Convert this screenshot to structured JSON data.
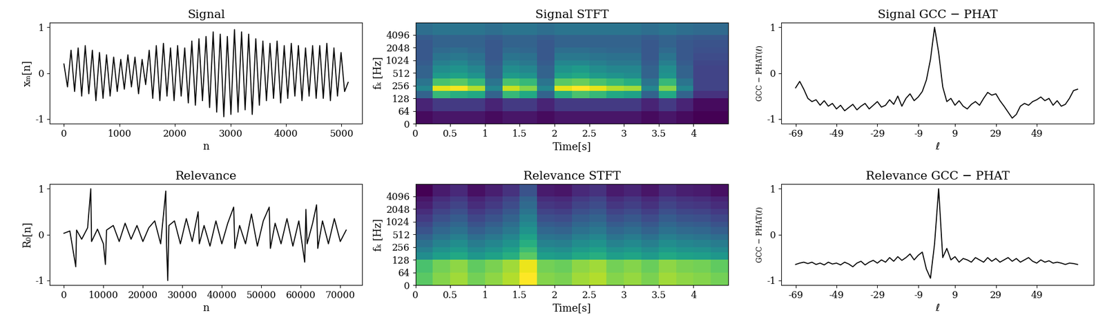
{
  "chart_data": [
    {
      "type": "line",
      "title": "Signal",
      "xlabel": "n",
      "ylabel": "xₘ[n]",
      "color": "#000000",
      "xlim": [
        -256,
        5376
      ],
      "ylim": [
        -1.1,
        1.1
      ],
      "xticks": [
        0,
        1000,
        2000,
        3000,
        4000,
        5000
      ],
      "yticks": [
        -1,
        0,
        1
      ],
      "x": [
        0,
        64,
        128,
        192,
        256,
        320,
        384,
        448,
        512,
        576,
        640,
        704,
        768,
        832,
        896,
        960,
        1024,
        1088,
        1152,
        1216,
        1280,
        1344,
        1408,
        1472,
        1536,
        1600,
        1664,
        1728,
        1792,
        1856,
        1920,
        1984,
        2048,
        2112,
        2176,
        2240,
        2304,
        2368,
        2432,
        2496,
        2560,
        2624,
        2688,
        2752,
        2816,
        2880,
        2944,
        3008,
        3072,
        3136,
        3200,
        3264,
        3328,
        3392,
        3456,
        3520,
        3584,
        3648,
        3712,
        3776,
        3840,
        3904,
        3968,
        4032,
        4096,
        4160,
        4224,
        4288,
        4352,
        4416,
        4480,
        4544,
        4608,
        4672,
        4736,
        4800,
        4864,
        4928,
        4992,
        5056,
        5120
      ],
      "values": [
        0.2,
        -0.3,
        0.5,
        -0.4,
        0.55,
        -0.5,
        0.6,
        -0.45,
        0.5,
        -0.6,
        0.45,
        -0.55,
        0.4,
        -0.5,
        0.35,
        -0.4,
        0.3,
        -0.35,
        0.4,
        -0.3,
        0.35,
        -0.45,
        0.3,
        -0.25,
        0.5,
        -0.55,
        0.6,
        -0.6,
        0.65,
        -0.5,
        0.55,
        -0.6,
        0.6,
        -0.5,
        0.55,
        -0.65,
        0.7,
        -0.7,
        0.75,
        -0.6,
        0.8,
        -0.75,
        0.9,
        -0.85,
        0.85,
        -0.95,
        0.8,
        -0.9,
        0.95,
        -0.85,
        0.9,
        -0.8,
        0.85,
        -0.9,
        0.75,
        -0.7,
        0.7,
        -0.6,
        0.65,
        -0.55,
        0.7,
        -0.65,
        0.6,
        -0.55,
        0.65,
        -0.5,
        0.6,
        -0.6,
        0.55,
        -0.5,
        0.6,
        -0.55,
        0.6,
        -0.55,
        0.65,
        -0.6,
        0.55,
        -0.5,
        0.45,
        -0.4,
        -0.2
      ]
    },
    {
      "type": "heatmap",
      "title": "Signal STFT",
      "xlabel": "Time[s]",
      "ylabel": "fₖ [Hz]",
      "log": "y",
      "color": "viridis",
      "xlim": [
        0,
        4.5
      ],
      "ylim": [
        0,
        8000
      ],
      "xticks": [
        0,
        0.5,
        1,
        1.5,
        2,
        2.5,
        3,
        3.5,
        4
      ],
      "yticks": [
        0,
        64,
        128,
        256,
        512,
        1024,
        2048,
        4096
      ],
      "x_edges": [
        0,
        0.25,
        0.5,
        0.75,
        1,
        1.25,
        1.5,
        1.75,
        2,
        2.25,
        2.5,
        2.75,
        3,
        3.25,
        3.5,
        3.75,
        4,
        4.25,
        4.5
      ],
      "y_edges": [
        0,
        64,
        128,
        192,
        256,
        384,
        512,
        768,
        1024,
        1536,
        2048,
        3072,
        4096,
        8000
      ],
      "cells": [
        [
          0.3,
          0.32,
          0.32,
          0.32,
          0.3,
          0.32,
          0.32,
          0.3,
          0.32,
          0.32,
          0.32,
          0.32,
          0.32,
          0.3,
          0.32,
          0.3,
          0.28,
          0.28
        ],
        [
          0.35,
          0.4,
          0.4,
          0.4,
          0.35,
          0.4,
          0.4,
          0.35,
          0.4,
          0.4,
          0.4,
          0.4,
          0.4,
          0.35,
          0.4,
          0.35,
          0.3,
          0.3
        ],
        [
          0.5,
          0.75,
          0.72,
          0.7,
          0.5,
          0.75,
          0.7,
          0.5,
          0.72,
          0.78,
          0.75,
          0.7,
          0.68,
          0.5,
          0.7,
          0.5,
          0.38,
          0.38
        ],
        [
          0.6,
          0.95,
          0.97,
          0.9,
          0.6,
          0.92,
          0.85,
          0.6,
          0.95,
          0.98,
          0.95,
          0.9,
          0.88,
          0.6,
          0.85,
          0.6,
          0.42,
          0.42
        ],
        [
          0.55,
          0.78,
          0.8,
          0.75,
          0.55,
          0.78,
          0.75,
          0.55,
          0.8,
          0.82,
          0.78,
          0.75,
          0.72,
          0.55,
          0.75,
          0.55,
          0.42,
          0.42
        ],
        [
          0.5,
          0.66,
          0.68,
          0.64,
          0.5,
          0.66,
          0.64,
          0.5,
          0.68,
          0.7,
          0.66,
          0.64,
          0.62,
          0.5,
          0.64,
          0.5,
          0.42,
          0.42
        ],
        [
          0.5,
          0.62,
          0.64,
          0.6,
          0.5,
          0.62,
          0.6,
          0.5,
          0.64,
          0.66,
          0.62,
          0.6,
          0.6,
          0.5,
          0.62,
          0.5,
          0.42,
          0.42
        ],
        [
          0.48,
          0.58,
          0.6,
          0.56,
          0.48,
          0.58,
          0.56,
          0.48,
          0.6,
          0.6,
          0.58,
          0.56,
          0.56,
          0.48,
          0.58,
          0.48,
          0.43,
          0.43
        ],
        [
          0.47,
          0.55,
          0.56,
          0.54,
          0.47,
          0.55,
          0.54,
          0.47,
          0.56,
          0.56,
          0.55,
          0.54,
          0.54,
          0.47,
          0.55,
          0.47,
          0.44,
          0.44
        ],
        [
          0.47,
          0.52,
          0.53,
          0.51,
          0.47,
          0.52,
          0.51,
          0.47,
          0.53,
          0.53,
          0.52,
          0.51,
          0.51,
          0.47,
          0.52,
          0.47,
          0.45,
          0.45
        ],
        [
          0.47,
          0.5,
          0.5,
          0.5,
          0.47,
          0.5,
          0.5,
          0.47,
          0.5,
          0.5,
          0.5,
          0.5,
          0.5,
          0.47,
          0.5,
          0.47,
          0.46,
          0.46
        ],
        [
          0.48,
          0.5,
          0.5,
          0.5,
          0.48,
          0.5,
          0.5,
          0.48,
          0.5,
          0.5,
          0.5,
          0.5,
          0.5,
          0.48,
          0.5,
          0.48,
          0.47,
          0.47
        ],
        [
          0.53,
          0.55,
          0.55,
          0.55,
          0.53,
          0.55,
          0.55,
          0.53,
          0.55,
          0.55,
          0.55,
          0.55,
          0.55,
          0.53,
          0.55,
          0.53,
          0.52,
          0.52
        ]
      ]
    },
    {
      "type": "line",
      "title": "Signal GCC − PHAT",
      "xlabel": "ℓ",
      "ylabel": "GCC − PHAT(ℓ)",
      "color": "#000000",
      "xlim": [
        -76,
        77
      ],
      "ylim": [
        -1.1,
        1.1
      ],
      "xticks": [
        -69,
        -49,
        -29,
        -9,
        9,
        29,
        49
      ],
      "yticks": [
        -1,
        0,
        1
      ],
      "x": [
        -69,
        -67,
        -65,
        -63,
        -61,
        -59,
        -57,
        -55,
        -53,
        -51,
        -49,
        -47,
        -45,
        -43,
        -41,
        -39,
        -37,
        -35,
        -33,
        -31,
        -29,
        -27,
        -25,
        -23,
        -21,
        -19,
        -17,
        -15,
        -13,
        -11,
        -9,
        -7,
        -5,
        -3,
        -1,
        1,
        3,
        5,
        7,
        9,
        11,
        13,
        15,
        17,
        19,
        21,
        23,
        25,
        27,
        29,
        31,
        33,
        35,
        37,
        39,
        41,
        43,
        45,
        47,
        49,
        51,
        53,
        55,
        57,
        59,
        61,
        63,
        65,
        67,
        69
      ],
      "values": [
        -0.32,
        -0.18,
        -0.35,
        -0.55,
        -0.62,
        -0.58,
        -0.7,
        -0.6,
        -0.72,
        -0.66,
        -0.78,
        -0.7,
        -0.82,
        -0.75,
        -0.68,
        -0.8,
        -0.72,
        -0.66,
        -0.78,
        -0.7,
        -0.62,
        -0.74,
        -0.7,
        -0.58,
        -0.68,
        -0.5,
        -0.72,
        -0.55,
        -0.45,
        -0.6,
        -0.52,
        -0.4,
        -0.15,
        0.3,
        1.0,
        0.45,
        -0.3,
        -0.62,
        -0.55,
        -0.7,
        -0.6,
        -0.72,
        -0.78,
        -0.68,
        -0.62,
        -0.7,
        -0.55,
        -0.42,
        -0.48,
        -0.45,
        -0.6,
        -0.72,
        -0.85,
        -0.98,
        -0.9,
        -0.72,
        -0.66,
        -0.7,
        -0.62,
        -0.58,
        -0.52,
        -0.6,
        -0.55,
        -0.7,
        -0.6,
        -0.72,
        -0.68,
        -0.55,
        -0.38,
        -0.35
      ]
    },
    {
      "type": "line",
      "title": "Relevance",
      "xlabel": "n",
      "ylabel": "R₀[n]",
      "color": "#000000",
      "xlim": [
        -3600,
        75600
      ],
      "ylim": [
        -1.1,
        1.1
      ],
      "xticks": [
        0,
        10000,
        20000,
        30000,
        40000,
        50000,
        60000,
        70000
      ],
      "yticks": [
        -1,
        0,
        1
      ],
      "x": [
        0,
        1500,
        3000,
        3200,
        4500,
        6000,
        6800,
        7000,
        8500,
        10000,
        10500,
        10800,
        12500,
        14000,
        15500,
        17000,
        18500,
        20000,
        21500,
        23000,
        24500,
        25800,
        26000,
        26300,
        26600,
        28000,
        29500,
        31000,
        32500,
        34000,
        34300,
        35500,
        37000,
        38500,
        40000,
        41500,
        43000,
        43300,
        44500,
        46000,
        47500,
        49000,
        50500,
        52000,
        52300,
        53500,
        55000,
        56500,
        58000,
        59500,
        61000,
        61300,
        61600,
        63000,
        64000,
        64300,
        65500,
        67000,
        68500,
        70000,
        71500
      ],
      "values": [
        0.03,
        0.08,
        -0.7,
        0.1,
        -0.1,
        0.15,
        1.0,
        -0.15,
        0.12,
        -0.2,
        -0.65,
        0.1,
        0.2,
        -0.15,
        0.25,
        -0.1,
        0.2,
        -0.15,
        0.15,
        0.3,
        -0.2,
        0.95,
        -0.25,
        -1.0,
        0.2,
        0.3,
        -0.2,
        0.35,
        -0.15,
        0.5,
        -0.2,
        0.2,
        -0.25,
        0.3,
        -0.2,
        0.25,
        0.6,
        -0.3,
        0.2,
        -0.2,
        0.45,
        -0.25,
        0.3,
        0.6,
        -0.3,
        0.25,
        -0.2,
        0.35,
        -0.25,
        0.3,
        -0.6,
        0.55,
        -0.2,
        0.25,
        0.65,
        -0.3,
        0.3,
        -0.2,
        0.35,
        -0.15,
        0.1
      ]
    },
    {
      "type": "heatmap",
      "title": "Relevance STFT",
      "xlabel": "Time[s]",
      "ylabel": "fₖ [Hz]",
      "log": "y",
      "color": "viridis",
      "xlim": [
        0,
        4.5
      ],
      "ylim": [
        0,
        8000
      ],
      "xticks": [
        0,
        0.5,
        1,
        1.5,
        2,
        2.5,
        3,
        3.5,
        4
      ],
      "yticks": [
        0,
        64,
        128,
        256,
        512,
        1024,
        2048,
        4096
      ],
      "x_edges": [
        0,
        0.25,
        0.5,
        0.75,
        1,
        1.25,
        1.5,
        1.75,
        2,
        2.25,
        2.5,
        2.75,
        3,
        3.25,
        3.5,
        3.75,
        4,
        4.25,
        4.5
      ],
      "y_edges": [
        0,
        64,
        128,
        192,
        256,
        384,
        512,
        768,
        1024,
        1536,
        2048,
        3072,
        4096,
        8000
      ],
      "cells": [
        [
          0.8,
          0.85,
          0.88,
          0.83,
          0.86,
          0.9,
          0.98,
          0.85,
          0.84,
          0.88,
          0.9,
          0.85,
          0.87,
          0.84,
          0.88,
          0.86,
          0.85,
          0.83
        ],
        [
          0.78,
          0.83,
          0.86,
          0.81,
          0.84,
          0.88,
          0.96,
          0.83,
          0.82,
          0.86,
          0.88,
          0.83,
          0.85,
          0.82,
          0.86,
          0.84,
          0.83,
          0.81
        ],
        [
          0.62,
          0.67,
          0.7,
          0.65,
          0.68,
          0.72,
          0.8,
          0.67,
          0.66,
          0.7,
          0.72,
          0.67,
          0.69,
          0.66,
          0.7,
          0.68,
          0.67,
          0.65
        ],
        [
          0.58,
          0.63,
          0.66,
          0.61,
          0.64,
          0.68,
          0.76,
          0.63,
          0.62,
          0.66,
          0.68,
          0.63,
          0.65,
          0.62,
          0.66,
          0.64,
          0.63,
          0.61
        ],
        [
          0.54,
          0.59,
          0.62,
          0.57,
          0.6,
          0.64,
          0.72,
          0.59,
          0.58,
          0.62,
          0.64,
          0.59,
          0.61,
          0.58,
          0.62,
          0.6,
          0.59,
          0.57
        ],
        [
          0.5,
          0.55,
          0.58,
          0.53,
          0.56,
          0.6,
          0.68,
          0.55,
          0.54,
          0.58,
          0.6,
          0.55,
          0.57,
          0.54,
          0.58,
          0.56,
          0.55,
          0.53
        ],
        [
          0.46,
          0.51,
          0.54,
          0.49,
          0.52,
          0.56,
          0.64,
          0.51,
          0.5,
          0.54,
          0.56,
          0.51,
          0.53,
          0.5,
          0.54,
          0.52,
          0.51,
          0.49
        ],
        [
          0.43,
          0.48,
          0.51,
          0.46,
          0.49,
          0.53,
          0.61,
          0.48,
          0.47,
          0.51,
          0.53,
          0.48,
          0.5,
          0.47,
          0.51,
          0.49,
          0.48,
          0.46
        ],
        [
          0.4,
          0.45,
          0.48,
          0.43,
          0.46,
          0.5,
          0.58,
          0.45,
          0.44,
          0.48,
          0.5,
          0.45,
          0.47,
          0.44,
          0.48,
          0.46,
          0.45,
          0.43
        ],
        [
          0.37,
          0.42,
          0.45,
          0.4,
          0.43,
          0.47,
          0.55,
          0.42,
          0.41,
          0.45,
          0.47,
          0.42,
          0.44,
          0.41,
          0.45,
          0.43,
          0.42,
          0.4
        ],
        [
          0.34,
          0.39,
          0.42,
          0.37,
          0.4,
          0.44,
          0.52,
          0.39,
          0.38,
          0.42,
          0.44,
          0.39,
          0.41,
          0.38,
          0.42,
          0.4,
          0.39,
          0.37
        ],
        [
          0.32,
          0.37,
          0.4,
          0.35,
          0.38,
          0.42,
          0.5,
          0.37,
          0.36,
          0.4,
          0.42,
          0.37,
          0.39,
          0.36,
          0.4,
          0.38,
          0.37,
          0.35
        ],
        [
          0.28,
          0.33,
          0.36,
          0.31,
          0.34,
          0.38,
          0.46,
          0.33,
          0.32,
          0.36,
          0.38,
          0.33,
          0.35,
          0.32,
          0.36,
          0.34,
          0.33,
          0.31
        ]
      ]
    },
    {
      "type": "line",
      "title": "Relevance GCC − PHAT",
      "xlabel": "ℓ",
      "ylabel": "GCC − PHAT(ℓ)",
      "color": "#000000",
      "xlim": [
        -76,
        77
      ],
      "ylim": [
        -1.1,
        1.1
      ],
      "xticks": [
        -69,
        -49,
        -29,
        -9,
        9,
        29,
        49
      ],
      "yticks": [
        -1,
        0,
        1
      ],
      "x": [
        -69,
        -67,
        -65,
        -63,
        -61,
        -59,
        -57,
        -55,
        -53,
        -51,
        -49,
        -47,
        -45,
        -43,
        -41,
        -39,
        -37,
        -35,
        -33,
        -31,
        -29,
        -27,
        -25,
        -23,
        -21,
        -19,
        -17,
        -15,
        -13,
        -11,
        -9,
        -7,
        -5,
        -3,
        -1,
        1,
        3,
        5,
        7,
        9,
        11,
        13,
        15,
        17,
        19,
        21,
        23,
        25,
        27,
        29,
        31,
        33,
        35,
        37,
        39,
        41,
        43,
        45,
        47,
        49,
        51,
        53,
        55,
        57,
        59,
        61,
        63,
        65,
        67,
        69
      ],
      "values": [
        -0.65,
        -0.62,
        -0.6,
        -0.63,
        -0.6,
        -0.65,
        -0.62,
        -0.66,
        -0.6,
        -0.64,
        -0.62,
        -0.66,
        -0.6,
        -0.64,
        -0.7,
        -0.62,
        -0.58,
        -0.66,
        -0.6,
        -0.56,
        -0.62,
        -0.55,
        -0.6,
        -0.5,
        -0.58,
        -0.48,
        -0.56,
        -0.5,
        -0.42,
        -0.55,
        -0.45,
        -0.38,
        -0.75,
        -0.95,
        -0.2,
        1.0,
        -0.5,
        -0.3,
        -0.55,
        -0.48,
        -0.6,
        -0.52,
        -0.55,
        -0.6,
        -0.5,
        -0.55,
        -0.6,
        -0.5,
        -0.58,
        -0.52,
        -0.6,
        -0.55,
        -0.5,
        -0.58,
        -0.52,
        -0.6,
        -0.55,
        -0.5,
        -0.58,
        -0.62,
        -0.55,
        -0.6,
        -0.57,
        -0.62,
        -0.6,
        -0.62,
        -0.65,
        -0.62,
        -0.63,
        -0.65
      ]
    }
  ]
}
